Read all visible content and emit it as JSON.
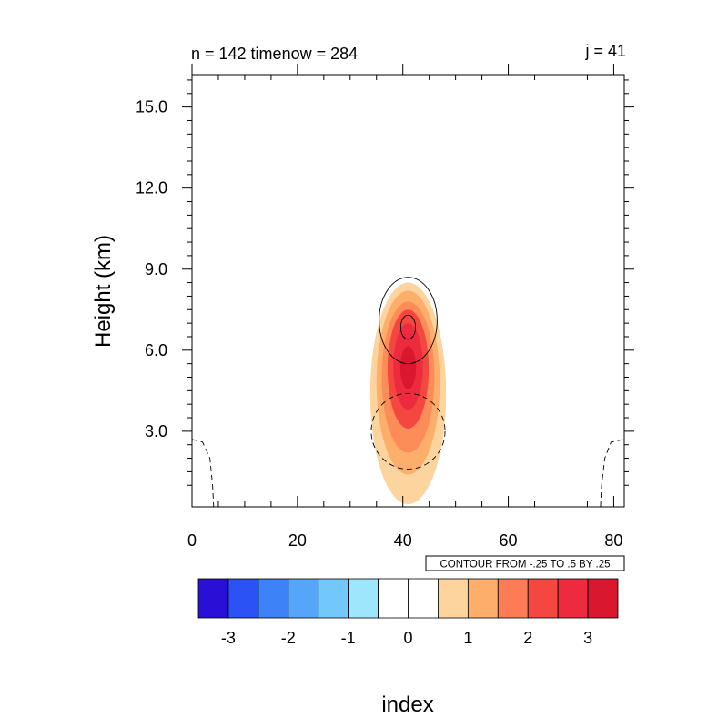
{
  "chart_data": {
    "type": "contour",
    "left_title": "n = 142 timenow = 284",
    "right_title": "j = 41",
    "xlabel": "index",
    "ylabel": "Height (km)",
    "xlim": [
      0,
      82
    ],
    "ylim": [
      0.2,
      16.2
    ],
    "x_ticks": [
      0,
      20,
      40,
      60,
      80
    ],
    "x_tick_labels": [
      "0",
      "20",
      "40",
      "60",
      "80"
    ],
    "y_ticks": [
      3,
      6,
      9,
      12,
      15
    ],
    "y_tick_labels": [
      "3.0",
      "6.0",
      "9.0",
      "12.0",
      "15.0"
    ],
    "contour_info_label": "CONTOUR FROM -.25 TO .5 BY .25",
    "line_contours": [
      {
        "kind": "solid",
        "shape": "ellipse",
        "cx": 41,
        "cy": 7.1,
        "rx": 5.5,
        "ry": 1.6
      },
      {
        "kind": "solid",
        "shape": "ellipse",
        "cx": 41,
        "cy": 6.85,
        "rx": 1.4,
        "ry": 0.45
      },
      {
        "kind": "dashed",
        "shape": "ellipse",
        "cx": 41,
        "cy": 3.0,
        "rx": 7.0,
        "ry": 1.4
      },
      {
        "kind": "dashed",
        "shape": "poly",
        "points": [
          [
            0,
            2.7
          ],
          [
            2,
            2.6
          ],
          [
            3.4,
            2.0
          ],
          [
            3.9,
            1.0
          ],
          [
            4.1,
            0.2
          ]
        ]
      },
      {
        "kind": "dashed",
        "shape": "poly",
        "points": [
          [
            77.5,
            0.2
          ],
          [
            77.7,
            1.0
          ],
          [
            78.3,
            2.0
          ],
          [
            79.5,
            2.6
          ],
          [
            82,
            2.7
          ]
        ]
      }
    ],
    "filled_levels": [
      {
        "level": 0.5,
        "color": "#fdd49e",
        "cx": 41,
        "cy": 4.4,
        "rx": 7.2,
        "ry": 4.1
      },
      {
        "level": 1.0,
        "color": "#fdae6b",
        "cx": 41,
        "cy": 4.8,
        "rx": 6.0,
        "ry": 3.4
      },
      {
        "level": 1.5,
        "color": "#fc8d59",
        "cx": 41,
        "cy": 5.0,
        "rx": 5.0,
        "ry": 2.8
      },
      {
        "level": 2.0,
        "color": "#f4473f",
        "cx": 41,
        "cy": 5.3,
        "rx": 3.9,
        "ry": 2.2
      },
      {
        "level": 2.5,
        "color": "#ee2b3e",
        "cx": 41,
        "cy": 5.4,
        "rx": 2.8,
        "ry": 1.6
      },
      {
        "level": 3.0,
        "color": "#d9172f",
        "cx": 41,
        "cy": 5.35,
        "rx": 1.5,
        "ry": 0.8
      }
    ],
    "colorbar": {
      "colors": [
        "#2a10d6",
        "#2a52f5",
        "#3d83f7",
        "#55a6f8",
        "#72c8fa",
        "#9ee6fc",
        "#ffffff",
        "#ffffff",
        "#fdd49e",
        "#fdae6b",
        "#fc7c56",
        "#f4473f",
        "#ee2b3e",
        "#d9172f"
      ],
      "tick_labels": [
        "-3",
        "-2",
        "-1",
        "0",
        "1",
        "2",
        "3"
      ]
    }
  }
}
